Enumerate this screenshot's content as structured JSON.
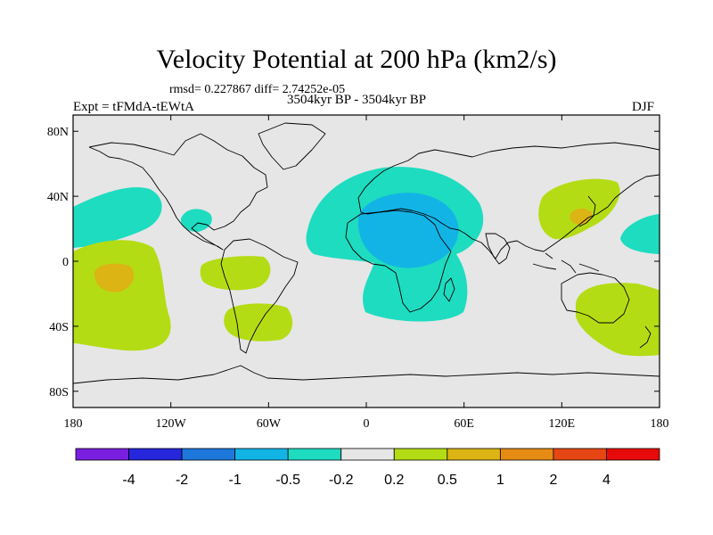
{
  "title": "Velocity Potential at 200 hPa (km2/s)",
  "stats_text": "rmsd= 0.227867 diff= 2.74252e-05",
  "experiment_text": "Expt = tFMdA-tEWtA",
  "period_text": "3504kyr BP - 3504kyr BP",
  "season_text": "DJF",
  "axes": {
    "lat_ticks": [
      {
        "label": "80N",
        "lat": 80
      },
      {
        "label": "40N",
        "lat": 40
      },
      {
        "label": "0",
        "lat": 0
      },
      {
        "label": "40S",
        "lat": -40
      },
      {
        "label": "80S",
        "lat": -80
      }
    ],
    "lon_ticks": [
      {
        "label": "180",
        "lon": -180
      },
      {
        "label": "120W",
        "lon": -120
      },
      {
        "label": "60W",
        "lon": -60
      },
      {
        "label": "0",
        "lon": 0
      },
      {
        "label": "60E",
        "lon": 60
      },
      {
        "label": "120E",
        "lon": 120
      },
      {
        "label": "180",
        "lon": 180
      }
    ]
  },
  "colorbar": {
    "colors": [
      "#7a1fe0",
      "#2626dc",
      "#1e78dc",
      "#12b4e6",
      "#1edcc0",
      "#e6e6e6",
      "#b4dc14",
      "#dcb414",
      "#e68c14",
      "#e64614",
      "#e60a0a"
    ],
    "labels": [
      "-4",
      "-2",
      "-1",
      "-0.5",
      "-0.2",
      "0.2",
      "0.5",
      "1",
      "2",
      "4"
    ]
  },
  "chart_data": {
    "type": "filled-contour-map",
    "variable": "Velocity Potential at 200 hPa",
    "units": "km2/s",
    "levels": [
      -4,
      -2,
      -1,
      -0.5,
      -0.2,
      0.2,
      0.5,
      1,
      2,
      4
    ],
    "projection": "cylindrical equidistant",
    "lon_range": [
      -180,
      180
    ],
    "lat_range": [
      -90,
      90
    ],
    "regions": [
      {
        "name": "africa-negative",
        "level_range": [
          -0.5,
          -0.2
        ],
        "center_lon": 17,
        "center_lat": 15
      },
      {
        "name": "africa-negative-core",
        "level_range": [
          -1,
          -0.5
        ],
        "center_lon": 25,
        "center_lat": 17
      },
      {
        "name": "north-pacific-negative",
        "level_range": [
          -0.5,
          -0.2
        ],
        "center_lon": -150,
        "center_lat": 30
      },
      {
        "name": "gulf-negative",
        "level_range": [
          -0.5,
          -0.2
        ],
        "center_lon": -103,
        "center_lat": 24
      },
      {
        "name": "west-pacific-negative",
        "level_range": [
          -0.5,
          -0.2
        ],
        "center_lon": 165,
        "center_lat": 18
      },
      {
        "name": "central-pacific-positive",
        "level_range": [
          0.2,
          0.5
        ],
        "center_lon": -160,
        "center_lat": -15
      },
      {
        "name": "central-pacific-positive-core",
        "level_range": [
          0.5,
          1
        ],
        "center_lon": -165,
        "center_lat": -5
      },
      {
        "name": "south-america-positive-north",
        "level_range": [
          0.2,
          0.5
        ],
        "center_lon": -72,
        "center_lat": -5
      },
      {
        "name": "south-america-positive-south",
        "level_range": [
          0.2,
          0.5
        ],
        "center_lon": -72,
        "center_lat": -33
      },
      {
        "name": "east-asia-positive",
        "level_range": [
          0.2,
          0.5
        ],
        "center_lon": 130,
        "center_lat": 40
      },
      {
        "name": "east-asia-positive-core",
        "level_range": [
          0.5,
          1
        ],
        "center_lon": 130,
        "center_lat": 33
      },
      {
        "name": "australia-positive",
        "level_range": [
          0.2,
          0.5
        ],
        "center_lon": 148,
        "center_lat": -38
      }
    ]
  }
}
